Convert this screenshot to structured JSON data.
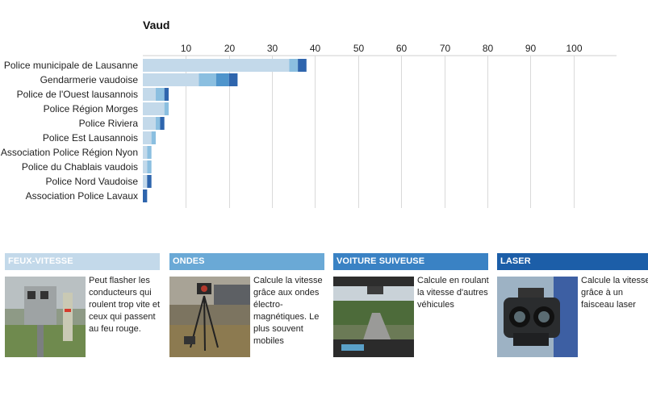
{
  "chart_data": {
    "type": "bar",
    "stacked": true,
    "orientation": "horizontal",
    "title": "Vaud",
    "xlim": [
      0,
      110
    ],
    "xticks": [
      10,
      20,
      30,
      40,
      50,
      60,
      70,
      80,
      90,
      100
    ],
    "grid": true,
    "categories": [
      "Police municipale de Lausanne",
      "Gendarmerie vaudoise",
      "Police de l'Ouest lausannois",
      "Police Région Morges",
      "Police Riviera",
      "Police Est Lausannois",
      "Association Police Région Nyon",
      "Police du Chablais vaudois",
      "Police Nord Vaudoise",
      "Association Police Lavaux"
    ],
    "series": [
      {
        "name": "FEUX-VITESSE",
        "color": "#c3d9ea",
        "values": [
          34,
          13,
          3,
          5,
          3,
          2,
          1,
          1,
          1,
          0
        ]
      },
      {
        "name": "ONDES",
        "color": "#8bbfe0",
        "values": [
          2,
          4,
          2,
          1,
          1,
          1,
          1,
          1,
          0,
          0
        ]
      },
      {
        "name": "VOITURE SUIVEUSE",
        "color": "#4f95cc",
        "values": [
          0,
          3,
          0,
          0,
          0,
          0,
          0,
          0,
          0,
          0
        ]
      },
      {
        "name": "LASER",
        "color": "#2e65ad",
        "values": [
          2,
          2,
          1,
          0,
          1,
          0,
          0,
          0,
          1,
          1
        ]
      }
    ]
  },
  "legend_cards": [
    {
      "title": "FEUX-VITESSE",
      "color": "#c3d9ea",
      "description": "Peut flasher les conducteurs qui roulent trop vite et ceux qui passent au feu rouge.",
      "photo": "speed-camera-photo"
    },
    {
      "title": "ONDES",
      "color": "#6aa9d6",
      "description": "Calcule la vitesse grâce aux ondes électro-magnétiques. Le plus souvent mobiles",
      "photo": "radar-tripod-photo"
    },
    {
      "title": "VOITURE SUIVEUSE",
      "color": "#3a82c4",
      "description": "Calcule en roulant la vitesse d'autres véhicules",
      "photo": "car-dashboard-photo"
    },
    {
      "title": "LASER",
      "color": "#1c5ea8",
      "description": "Calcule la vitesse grâce à un faisceau laser",
      "photo": "laser-gun-photo"
    }
  ]
}
